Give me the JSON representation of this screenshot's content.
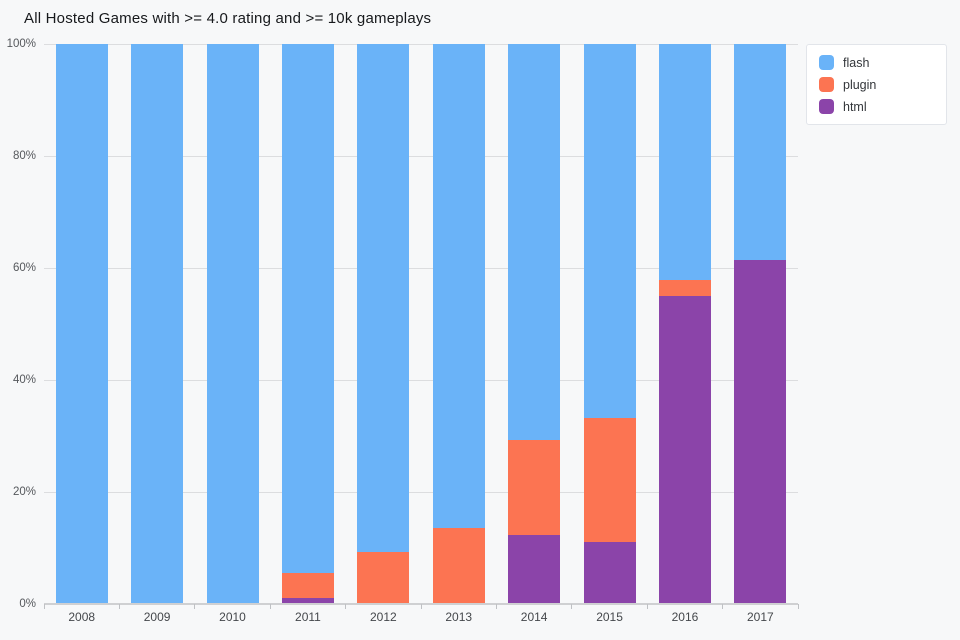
{
  "title": "All Hosted Games with >= 4.0 rating and >= 10k gameplays",
  "chart_data": {
    "type": "bar",
    "stacked": true,
    "normalized": "percent",
    "title": "All Hosted Games with >= 4.0 rating and >= 10k gameplays",
    "xlabel": "",
    "ylabel": "",
    "categories": [
      "2008",
      "2009",
      "2010",
      "2011",
      "2012",
      "2013",
      "2014",
      "2015",
      "2016",
      "2017"
    ],
    "series": [
      {
        "name": "flash",
        "color": "#6ab3f8",
        "values": [
          100,
          100,
          100,
          94.5,
          90.7,
          86.4,
          70.7,
          66.8,
          42.1,
          38.6
        ]
      },
      {
        "name": "plugin",
        "color": "#fc7452",
        "values": [
          0,
          0,
          0,
          4.5,
          9.3,
          13.6,
          17.0,
          22.2,
          2.9,
          0
        ]
      },
      {
        "name": "html",
        "color": "#8b44a9",
        "values": [
          0,
          0,
          0,
          1.0,
          0,
          0,
          12.3,
          11.0,
          55.0,
          61.4
        ]
      }
    ],
    "stack_order_bottom_to_top": [
      "html",
      "plugin",
      "flash"
    ],
    "ylim": [
      0,
      100
    ],
    "y_ticks": [
      {
        "value": 0,
        "label": "0%"
      },
      {
        "value": 20,
        "label": "20%"
      },
      {
        "value": 40,
        "label": "40%"
      },
      {
        "value": 60,
        "label": "60%"
      },
      {
        "value": 80,
        "label": "80%"
      },
      {
        "value": 100,
        "label": "100%"
      }
    ],
    "grid": "horizontal",
    "legend_position": "top-right"
  },
  "legend": {
    "items": [
      {
        "label": "flash",
        "color": "#6ab3f8"
      },
      {
        "label": "plugin",
        "color": "#fc7452"
      },
      {
        "label": "html",
        "color": "#8b44a9"
      }
    ]
  },
  "colors": {
    "background": "#f7f8f9",
    "gridline": "#dcdddf",
    "axis_line": "#cfd0d2",
    "tick_label": "#55585c",
    "title_text": "#17191c"
  }
}
